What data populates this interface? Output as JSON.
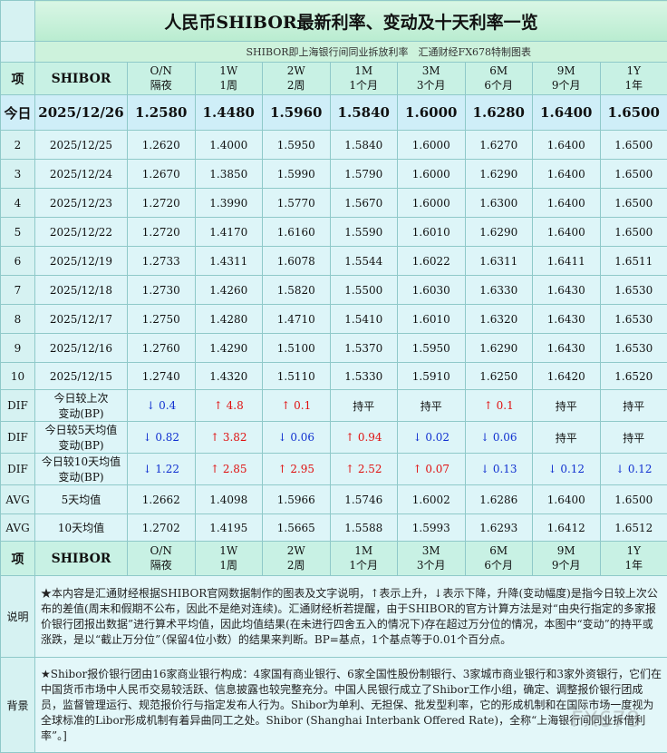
{
  "header": {
    "title": "人民币SHIBOR最新利率、变动及十天利率一览",
    "subtitle": "SHIBOR即上海银行间同业拆放利率　汇通财经FX678特制图表"
  },
  "table": {
    "head": [
      "项",
      "SHIBOR"
    ],
    "terms": [
      {
        "code": "O/N",
        "name": "隔夜"
      },
      {
        "code": "1W",
        "name": "1周"
      },
      {
        "code": "2W",
        "name": "2周"
      },
      {
        "code": "1M",
        "name": "1个月"
      },
      {
        "code": "3M",
        "name": "3个月"
      },
      {
        "code": "6M",
        "name": "6个月"
      },
      {
        "code": "9M",
        "name": "9个月"
      },
      {
        "code": "1Y",
        "name": "1年"
      }
    ],
    "rows": [
      {
        "label": "今日",
        "date": "2025/12/26",
        "values": [
          "1.2580",
          "1.4480",
          "1.5960",
          "1.5840",
          "1.6000",
          "1.6280",
          "1.6400",
          "1.6500"
        ]
      },
      {
        "label": "2",
        "date": "2025/12/25",
        "values": [
          "1.2620",
          "1.4000",
          "1.5950",
          "1.5840",
          "1.6000",
          "1.6270",
          "1.6400",
          "1.6500"
        ]
      },
      {
        "label": "3",
        "date": "2025/12/24",
        "values": [
          "1.2670",
          "1.3850",
          "1.5990",
          "1.5790",
          "1.6000",
          "1.6290",
          "1.6400",
          "1.6500"
        ]
      },
      {
        "label": "4",
        "date": "2025/12/23",
        "values": [
          "1.2720",
          "1.3990",
          "1.5770",
          "1.5670",
          "1.6000",
          "1.6300",
          "1.6400",
          "1.6500"
        ]
      },
      {
        "label": "5",
        "date": "2025/12/22",
        "values": [
          "1.2720",
          "1.4170",
          "1.6160",
          "1.5590",
          "1.6010",
          "1.6290",
          "1.6400",
          "1.6500"
        ]
      },
      {
        "label": "6",
        "date": "2025/12/19",
        "values": [
          "1.2733",
          "1.4311",
          "1.6078",
          "1.5544",
          "1.6022",
          "1.6311",
          "1.6411",
          "1.6511"
        ]
      },
      {
        "label": "7",
        "date": "2025/12/18",
        "values": [
          "1.2730",
          "1.4260",
          "1.5820",
          "1.5500",
          "1.6030",
          "1.6330",
          "1.6430",
          "1.6530"
        ]
      },
      {
        "label": "8",
        "date": "2025/12/17",
        "values": [
          "1.2750",
          "1.4280",
          "1.4710",
          "1.5410",
          "1.6010",
          "1.6320",
          "1.6430",
          "1.6530"
        ]
      },
      {
        "label": "9",
        "date": "2025/12/16",
        "values": [
          "1.2760",
          "1.4290",
          "1.5100",
          "1.5370",
          "1.5950",
          "1.6290",
          "1.6430",
          "1.6530"
        ]
      },
      {
        "label": "10",
        "date": "2025/12/15",
        "values": [
          "1.2740",
          "1.4320",
          "1.5110",
          "1.5330",
          "1.5910",
          "1.6250",
          "1.6420",
          "1.6520"
        ]
      }
    ],
    "dif_rows": [
      {
        "label": "DIF",
        "name": [
          "今日较上次",
          "变动(BP)"
        ],
        "values": [
          "↓ 0.4",
          "↑ 4.8",
          "↑ 0.1",
          "持平",
          "持平",
          "↑ 0.1",
          "持平",
          "持平"
        ]
      },
      {
        "label": "DIF",
        "name": [
          "今日较5天均值",
          "变动(BP)"
        ],
        "values": [
          "↓ 0.82",
          "↑ 3.82",
          "↓ 0.06",
          "↑ 0.94",
          "↓ 0.02",
          "↓ 0.06",
          "持平",
          "持平"
        ]
      },
      {
        "label": "DIF",
        "name": [
          "今日较10天均值",
          "变动(BP)"
        ],
        "values": [
          "↓ 1.22",
          "↑ 2.85",
          "↑ 2.95",
          "↑ 2.52",
          "↑ 0.07",
          "↓ 0.13",
          "↓ 0.12",
          "↓ 0.12"
        ]
      }
    ],
    "avg_rows": [
      {
        "label": "AVG",
        "name": "5天均值",
        "values": [
          "1.2662",
          "1.4098",
          "1.5966",
          "1.5746",
          "1.6002",
          "1.6286",
          "1.6400",
          "1.6500"
        ]
      },
      {
        "label": "AVG",
        "name": "10天均值",
        "values": [
          "1.2702",
          "1.4195",
          "1.5665",
          "1.5588",
          "1.5993",
          "1.6293",
          "1.6412",
          "1.6512"
        ]
      }
    ]
  },
  "notes": [
    {
      "label": "说明",
      "text": "★本内容是汇通财经根据SHIBOR官网数据制作的图表及文字说明，↑表示上升，↓表示下降，升降(变动幅度)是指今日较上次公布的差值(周末和假期不公布，因此不是绝对连续)。汇通财经析若提醒，由于SHIBOR的官方计算方法是对“由央行指定的多家报价银行团报出数据”进行算术平均值，因此均值结果(在未进行四舍五入的情况下)存在超过万分位的情况，本图中“变动”的持平或涨跌，是以“截止万分位”（保留4位小数）的结果来判断。BP=基点，1个基点等于0.01个百分点。"
    },
    {
      "label": "背景",
      "text": "★Shibor报价银行团由16家商业银行构成：4家国有商业银行、6家全国性股份制银行、3家城市商业银行和3家外资银行，它们在中国货币市场中人民币交易较活跃、信息披露也较完整充分。中国人民银行成立了Shibor工作小组，确定、调整报价银行团成员，监督管理运行、规范报价行与指定发布人行为。Shibor为单利、无担保、批发型利率，它的形成机制和在国际市场一度视为全球标准的Libor形成机制有着异曲同工之处。Shibor (Shanghai Interbank Offered Rate)，全称“上海银行间同业拆借利率”。]"
    }
  ],
  "watermark": "FX678"
}
